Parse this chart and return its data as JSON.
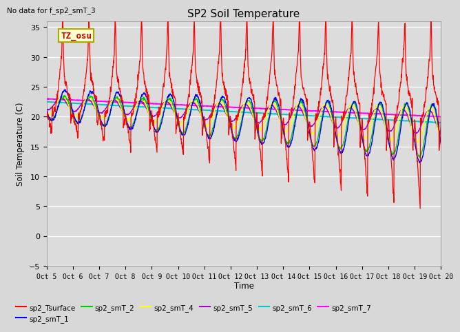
{
  "title": "SP2 Soil Temperature",
  "ylabel": "Soil Temperature (C)",
  "xlabel": "Time",
  "no_data_text": "No data for f_sp2_smT_3",
  "tz_label": "TZ_osu",
  "ylim": [
    -5,
    36
  ],
  "yticks": [
    -5,
    0,
    5,
    10,
    15,
    20,
    25,
    30,
    35
  ],
  "x_tick_labels": [
    "Oct 5",
    "Oct 6",
    "Oct 7",
    "Oct 8",
    "Oct 9",
    "Oct 10",
    "Oct 11",
    "Oct 12",
    "Oct 13",
    "Oct 14",
    "Oct 15",
    "Oct 16",
    "Oct 17",
    "Oct 18",
    "Oct 19",
    "Oct 20"
  ],
  "n_days": 15,
  "colors": {
    "sp2_Tsurface": "#FF0000",
    "sp2_smT_1": "#0000FF",
    "sp2_smT_2": "#00CC00",
    "sp2_smT_4": "#FFFF00",
    "sp2_smT_5": "#AA00CC",
    "sp2_smT_6": "#00CCCC",
    "sp2_smT_7": "#FF00FF"
  },
  "fig_bg": "#D8D8D8",
  "plot_bg": "#DCDCDC"
}
